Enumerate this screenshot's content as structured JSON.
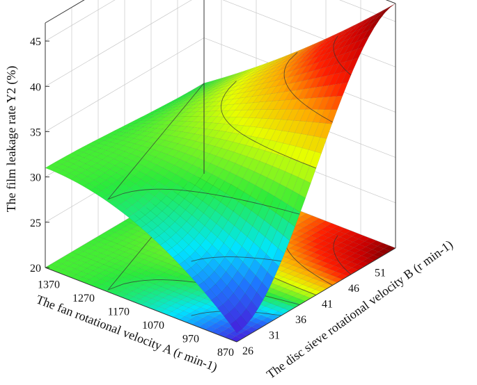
{
  "chart_data": {
    "type": "surface3d",
    "title": "",
    "xlabel": "The fan rotational velocity A (r min-1)",
    "ylabel": "The disc sieve rotational velocity B (r min-1)",
    "zlabel": "The film leakage rate Y2 (%)",
    "x_ticks": [
      "870",
      "970",
      "1070",
      "1170",
      "1270",
      "1370"
    ],
    "y_ticks": [
      "26",
      "31",
      "36",
      "41",
      "46",
      "51"
    ],
    "z_ticks": [
      "20",
      "25",
      "30",
      "35",
      "40",
      "45"
    ],
    "xlim": [
      870,
      1420
    ],
    "ylim": [
      26,
      56
    ],
    "zlim": [
      20,
      47
    ],
    "surface_samples": [
      {
        "A": 1420,
        "B": 26,
        "Y2": 22
      },
      {
        "A": 1420,
        "B": 56,
        "Y2": 30
      },
      {
        "A": 870,
        "B": 26,
        "Y2": 21
      },
      {
        "A": 870,
        "B": 56,
        "Y2": 47
      },
      {
        "A": 1170,
        "B": 26,
        "Y2": 31
      }
    ],
    "projection_floor": true
  }
}
